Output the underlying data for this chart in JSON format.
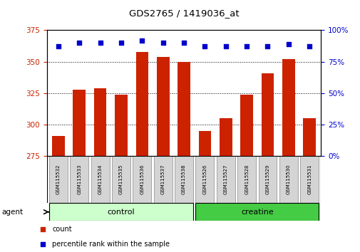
{
  "title": "GDS2765 / 1419036_at",
  "categories": [
    "GSM115532",
    "GSM115533",
    "GSM115534",
    "GSM115535",
    "GSM115536",
    "GSM115537",
    "GSM115538",
    "GSM115526",
    "GSM115527",
    "GSM115528",
    "GSM115529",
    "GSM115530",
    "GSM115531"
  ],
  "bar_values": [
    291,
    328,
    329,
    324,
    358,
    354,
    350,
    295,
    305,
    324,
    341,
    352,
    305
  ],
  "percentile_values": [
    87,
    90,
    90,
    90,
    92,
    90,
    90,
    87,
    87,
    87,
    87,
    89,
    87
  ],
  "bar_color": "#cc2200",
  "dot_color": "#0000cc",
  "ylim_left": [
    275,
    375
  ],
  "ylim_right": [
    0,
    100
  ],
  "yticks_left": [
    275,
    300,
    325,
    350,
    375
  ],
  "yticks_right": [
    0,
    25,
    50,
    75,
    100
  ],
  "group_labels": [
    "control",
    "creatine"
  ],
  "group_colors_light": "#ccffcc",
  "group_colors_dark": "#44cc44",
  "legend_items": [
    [
      "count",
      "#cc2200"
    ],
    [
      "percentile rank within the sample",
      "#0000cc"
    ]
  ],
  "tick_color_left": "#cc2200",
  "tick_color_right": "#0000cc",
  "bar_width": 0.6,
  "sample_box_color": "#d4d4d4"
}
